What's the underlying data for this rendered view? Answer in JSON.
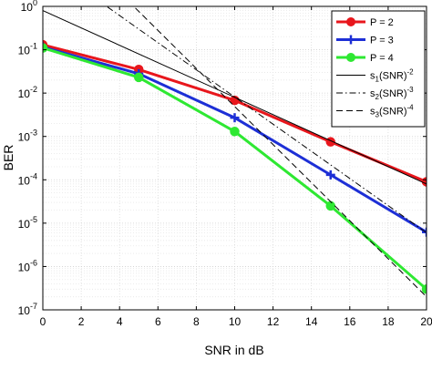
{
  "chart_data": {
    "type": "line",
    "xlabel": "SNR in dB",
    "ylabel": "BER",
    "xlim": [
      0,
      20
    ],
    "ylim_log10": [
      -7,
      0
    ],
    "y_scale": "log",
    "grid": true,
    "grid_minor": true,
    "legend_position": "top-right",
    "x_ticks": [
      "0",
      "2",
      "4",
      "6",
      "8",
      "10",
      "12",
      "14",
      "16",
      "18",
      "20"
    ],
    "y_ticks": [
      {
        "base": "10",
        "exp": "0",
        "value": 1
      },
      {
        "base": "10",
        "exp": "-1",
        "value": 0.1
      },
      {
        "base": "10",
        "exp": "-2",
        "value": 0.01
      },
      {
        "base": "10",
        "exp": "-3",
        "value": 0.001
      },
      {
        "base": "10",
        "exp": "-4",
        "value": 0.0001
      },
      {
        "base": "10",
        "exp": "-5",
        "value": 1e-05
      },
      {
        "base": "10",
        "exp": "-6",
        "value": 1e-06
      },
      {
        "base": "10",
        "exp": "-7",
        "value": 1e-07
      }
    ],
    "series": [
      {
        "name": "P = 2",
        "color": "#e8161c",
        "marker": "circle",
        "x": [
          0,
          5,
          10,
          15,
          20
        ],
        "y": [
          0.13,
          0.035,
          0.0068,
          0.00075,
          9e-05
        ]
      },
      {
        "name": "P = 3",
        "color": "#1d2fd6",
        "marker": "plus",
        "x": [
          0,
          5,
          10,
          15,
          20
        ],
        "y": [
          0.115,
          0.028,
          0.0027,
          0.00013,
          6.2e-06
        ]
      },
      {
        "name": "P = 4",
        "color": "#2ee832",
        "marker": "circle",
        "x": [
          0,
          5,
          10,
          15,
          20
        ],
        "y": [
          0.11,
          0.023,
          0.0013,
          2.5e-05,
          3e-07
        ]
      },
      {
        "name_parts": [
          "s",
          "1",
          "(SNR)",
          "-2"
        ],
        "color": "#000000",
        "dash": "solid",
        "x": [
          0,
          20
        ],
        "y": [
          0.8,
          8e-05
        ]
      },
      {
        "name_parts": [
          "s",
          "2",
          "(SNR)",
          "-3"
        ],
        "color": "#000000",
        "dash": "dashdot",
        "x": [
          0,
          20
        ],
        "y": [
          11,
          6e-06
        ]
      },
      {
        "name_parts": [
          "s",
          "3",
          "(SNR)",
          "-4"
        ],
        "color": "#000000",
        "dash": "dash",
        "x": [
          0,
          20
        ],
        "y": [
          120,
          2e-07
        ]
      }
    ]
  }
}
